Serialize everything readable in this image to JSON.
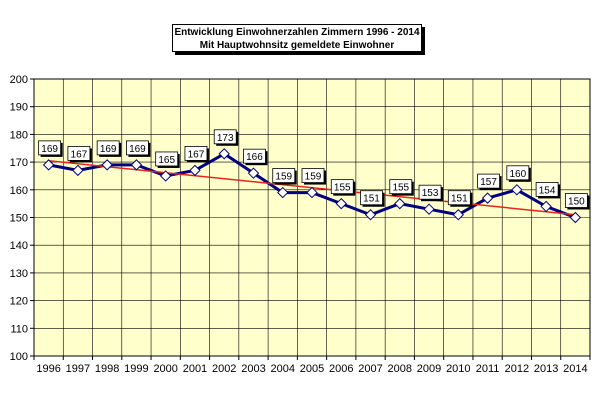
{
  "chart_data": {
    "type": "line",
    "title": "Entwicklung Einwohnerzahlen Zimmern 1996 - 2014",
    "subtitle": "Mit Hauptwohnsitz gemeldete Einwohner",
    "categories": [
      "1996",
      "1997",
      "1998",
      "1999",
      "2000",
      "2001",
      "2002",
      "2003",
      "2004",
      "2005",
      "2006",
      "2007",
      "2008",
      "2009",
      "2010",
      "2011",
      "2012",
      "2013",
      "2014"
    ],
    "series": [
      {
        "values": [
          169,
          167,
          169,
          169,
          165,
          167,
          173,
          166,
          159,
          159,
          155,
          151,
          155,
          153,
          151,
          157,
          160,
          154,
          150
        ]
      }
    ],
    "trendline": {
      "start": 170.5,
      "end": 151.0,
      "color": "#e8241c"
    },
    "ylim": [
      100,
      200
    ],
    "yticks": [
      100,
      110,
      120,
      130,
      140,
      150,
      160,
      170,
      180,
      190,
      200
    ],
    "grid": true,
    "legend": "none",
    "colors": {
      "plot_bg": "#ffffcc",
      "line": "#000080",
      "marker_fill": "#ffffff",
      "grid": "#000000"
    }
  }
}
